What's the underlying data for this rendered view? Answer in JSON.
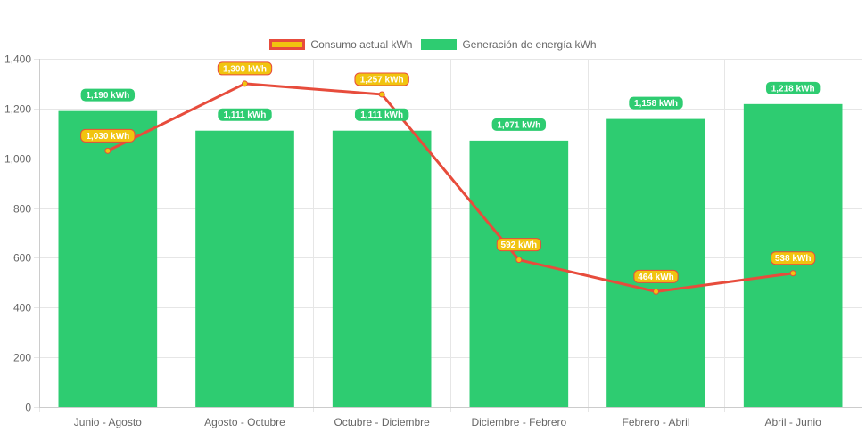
{
  "legend": {
    "line_label": "Consumo actual kWh",
    "bar_label": "Generación de energía kWh"
  },
  "colors": {
    "line": "#e74c3c",
    "line_point": "#f1c40f",
    "bar": "#2ecc71",
    "grid": "#e6e6e6",
    "axis": "#cccccc"
  },
  "chart_data": {
    "type": "bar",
    "title": "",
    "xlabel": "",
    "ylabel": "",
    "ylim": [
      0,
      1400
    ],
    "yticks": [
      0,
      200,
      400,
      600,
      800,
      1000,
      1200,
      1400
    ],
    "ytick_labels": [
      "0",
      "200",
      "400",
      "600",
      "800",
      "1,000",
      "1,200",
      "1,400"
    ],
    "grid": true,
    "legend_position": "top",
    "categories": [
      "Junio - Agosto",
      "Agosto - Octubre",
      "Octubre - Diciembre",
      "Diciembre - Febrero",
      "Febrero - Abril",
      "Abril - Junio"
    ],
    "series": [
      {
        "name": "Consumo actual kWh",
        "type": "line",
        "values": [
          1030,
          1300,
          1257,
          592,
          464,
          538
        ],
        "labels": [
          "1,030 kWh",
          "1,300 kWh",
          "1,257 kWh",
          "592 kWh",
          "464 kWh",
          "538 kWh"
        ]
      },
      {
        "name": "Generación de energía kWh",
        "type": "bar",
        "values": [
          1190,
          1111,
          1111,
          1071,
          1158,
          1218
        ],
        "labels": [
          "1,190 kWh",
          "1,111 kWh",
          "1,111 kWh",
          "1,071 kWh",
          "1,158 kWh",
          "1,218 kWh"
        ]
      }
    ]
  }
}
